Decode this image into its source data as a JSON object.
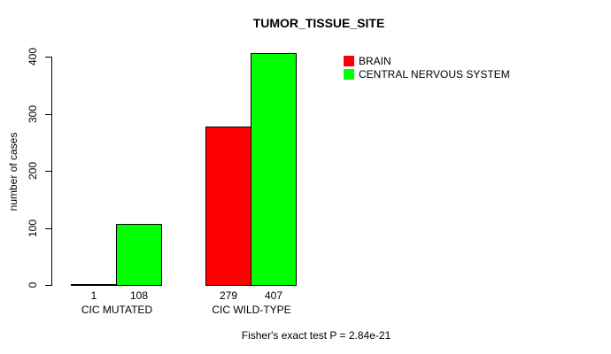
{
  "chart_data": {
    "type": "bar",
    "title": "TUMOR_TISSUE_SITE",
    "ylabel": "number of cases",
    "xlabel": "",
    "categories": [
      "CIC MUTATED",
      "CIC WILD-TYPE"
    ],
    "series": [
      {
        "name": "BRAIN",
        "color": "#ff0000",
        "values": [
          1,
          279
        ]
      },
      {
        "name": "CENTRAL NERVOUS SYSTEM",
        "color": "#00ff00",
        "values": [
          108,
          407
        ]
      }
    ],
    "bar_value_labels": [
      [
        "1",
        "279"
      ],
      [
        "108",
        "407"
      ]
    ],
    "ylim": [
      0,
      400
    ],
    "yticks": [
      0,
      100,
      200,
      300,
      400
    ],
    "grid": false,
    "legend_position": "top-right-inside",
    "annotation": "Fisher's exact test P = 2.84e-21"
  },
  "colors": {
    "axis": "#000000",
    "background": "#ffffff",
    "bar_border": "#000000"
  }
}
